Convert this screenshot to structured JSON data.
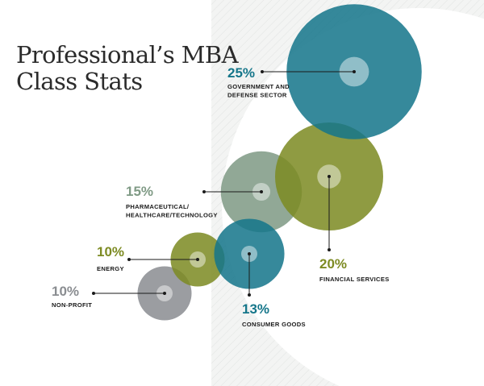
{
  "title_lines": [
    "Professional’s MBA",
    "Class Stats"
  ],
  "colors": {
    "teal": "#15768a",
    "olive": "#7d8b23",
    "sage": "#7f9a85",
    "gray": "#8a8d91",
    "panel": "#f2f3f2"
  },
  "chart_data": {
    "type": "bubble",
    "title": "Professional’s MBA Class Stats",
    "unit": "%",
    "items": [
      {
        "value": 25,
        "pct_label": "25%",
        "label_lines": [
          "GOVERNMENT AND",
          "DEFENSE SECTOR"
        ],
        "color": "#15768a"
      },
      {
        "value": 20,
        "pct_label": "20%",
        "label_lines": [
          "FINANCIAL SERVICES"
        ],
        "color": "#7d8b23"
      },
      {
        "value": 15,
        "pct_label": "15%",
        "label_lines": [
          "PHARMACEUTICAL/",
          "HEALTHCARE/TECHNOLOGY"
        ],
        "color": "#7f9a85"
      },
      {
        "value": 13,
        "pct_label": "13%",
        "label_lines": [
          "CONSUMER GOODS"
        ],
        "color": "#15768a"
      },
      {
        "value": 10,
        "pct_label": "10%",
        "label_lines": [
          "ENERGY"
        ],
        "color": "#7d8b23"
      },
      {
        "value": 10,
        "pct_label": "10%",
        "label_lines": [
          "NON-PROFIT"
        ],
        "color": "#8a8d91"
      }
    ]
  }
}
